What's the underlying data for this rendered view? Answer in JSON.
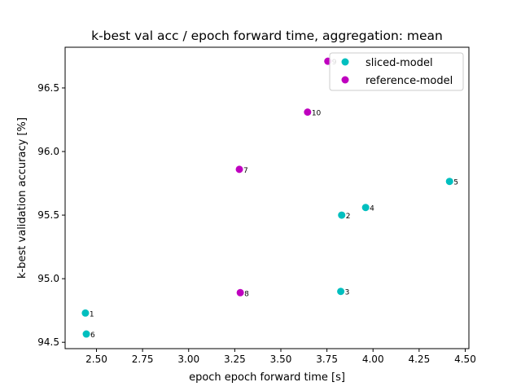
{
  "chart_data": {
    "type": "scatter",
    "title": "k-best val acc / epoch forward time, aggregation: mean",
    "xlabel": "epoch epoch forward time [s]",
    "ylabel": "k-best validation accuracy [%]",
    "xlim": [
      2.33,
      4.52
    ],
    "ylim": [
      94.45,
      96.82
    ],
    "xticks": [
      2.5,
      2.75,
      3.0,
      3.25,
      3.5,
      3.75,
      4.0,
      4.25,
      4.5
    ],
    "xtick_labels": [
      "2.50",
      "2.75",
      "3.00",
      "3.25",
      "3.50",
      "3.75",
      "4.00",
      "4.25",
      "4.50"
    ],
    "yticks": [
      94.5,
      95.0,
      95.5,
      96.0,
      96.5
    ],
    "ytick_labels": [
      "94.5",
      "95.0",
      "95.5",
      "96.0",
      "96.5"
    ],
    "grid": false,
    "legend_position": "top-right",
    "series": [
      {
        "name": "sliced-model",
        "color": "#00bfbf",
        "points": [
          {
            "x": 2.44,
            "y": 94.73,
            "label": "1"
          },
          {
            "x": 3.83,
            "y": 95.5,
            "label": "2"
          },
          {
            "x": 3.825,
            "y": 94.9,
            "label": "3"
          },
          {
            "x": 3.96,
            "y": 95.56,
            "label": "4"
          },
          {
            "x": 4.415,
            "y": 95.765,
            "label": "5"
          },
          {
            "x": 2.445,
            "y": 94.565,
            "label": "6"
          }
        ]
      },
      {
        "name": "reference-model",
        "color": "#bf00bf",
        "points": [
          {
            "x": 3.275,
            "y": 95.86,
            "label": "7"
          },
          {
            "x": 3.28,
            "y": 94.89,
            "label": "8"
          },
          {
            "x": 3.755,
            "y": 96.71,
            "label": "9"
          },
          {
            "x": 3.645,
            "y": 96.31,
            "label": "10"
          }
        ]
      }
    ]
  }
}
